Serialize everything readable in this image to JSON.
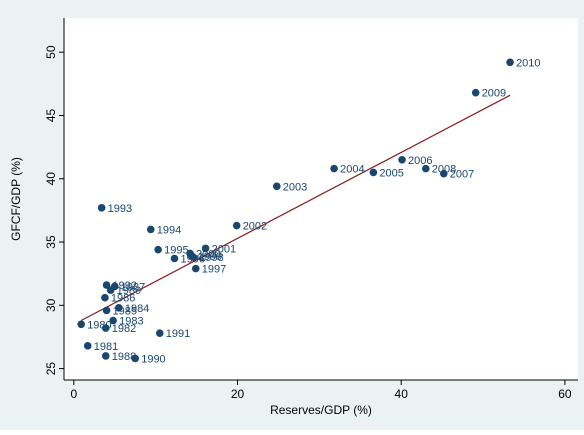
{
  "chart_data": {
    "type": "scatter",
    "xlabel": "Reserves/GDP (%)",
    "ylabel": "GFCF/GDP (%)",
    "x": [
      0.9,
      1.7,
      3.9,
      4.8,
      5.5,
      4.0,
      3.8,
      5.0,
      3.9,
      4.5,
      7.5,
      10.5,
      4.0,
      3.4,
      9.4,
      10.3,
      12.3,
      14.9,
      14.6,
      14.4,
      14.2,
      16.1,
      19.9,
      24.8,
      31.8,
      36.6,
      40.1,
      45.2,
      43.0,
      49.1,
      53.3
    ],
    "values": [
      28.5,
      26.8,
      28.2,
      28.8,
      29.8,
      29.6,
      30.6,
      31.5,
      26.0,
      31.2,
      25.8,
      27.8,
      31.6,
      37.7,
      36.0,
      34.4,
      33.7,
      32.9,
      33.8,
      33.9,
      34.1,
      34.5,
      36.3,
      39.4,
      40.8,
      40.5,
      41.5,
      40.4,
      40.8,
      46.8,
      49.2
    ],
    "point_labels": [
      "1980",
      "1981",
      "1982",
      "1983",
      "1984",
      "1985",
      "1986",
      "1987",
      "1988",
      "1989",
      "1990",
      "1991",
      "1992",
      "1993",
      "1994",
      "1995",
      "1996",
      "1997",
      "1998",
      "1999",
      "2000",
      "2001",
      "2002",
      "2003",
      "2004",
      "2005",
      "2006",
      "2007",
      "2008",
      "2009",
      "2010"
    ],
    "color": "#1a476f",
    "fit": {
      "x": [
        0.9,
        53.3
      ],
      "y": [
        28.8,
        46.6
      ],
      "color": "#8b1a1a"
    },
    "xlim": [
      -1.2,
      61.6
    ],
    "ylim": [
      24.1,
      52.7
    ],
    "xticks": [
      0,
      20,
      40,
      60
    ],
    "yticks": [
      25,
      30,
      35,
      40,
      45,
      50
    ]
  }
}
